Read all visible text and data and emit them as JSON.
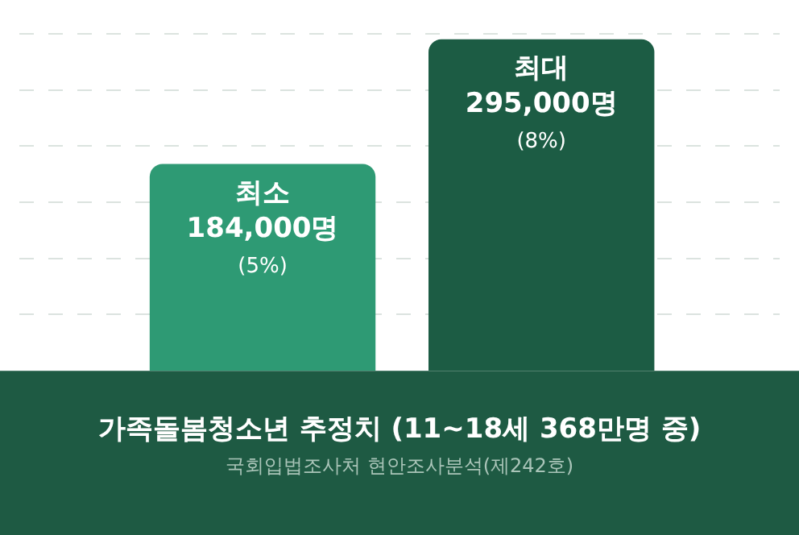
{
  "chart_data": {
    "type": "bar",
    "title": "가족돌봄청소년 추정치 (11~18세 368만명 중)",
    "categories": [
      "최소",
      "최대"
    ],
    "values": [
      184000,
      295000
    ],
    "colors": [
      "#2e9a74",
      "#1c5c44"
    ],
    "value_labels": [
      "184,000명\n(5%)",
      "295,000명\n(8%)"
    ],
    "ylim": [
      0,
      330000
    ],
    "yticks": [
      {
        "value": 50000,
        "label": null
      },
      {
        "value": 100000,
        "label": null
      },
      {
        "value": 150000,
        "label": null
      },
      {
        "value": 200000,
        "label": null
      },
      {
        "value": 250000,
        "label": null
      },
      {
        "value": 300000,
        "label": null
      }
    ],
    "grid": "y",
    "tick_labels": false,
    "annotations": [
      "국회입법조사처 현안조사분석(제242호)"
    ]
  }
}
